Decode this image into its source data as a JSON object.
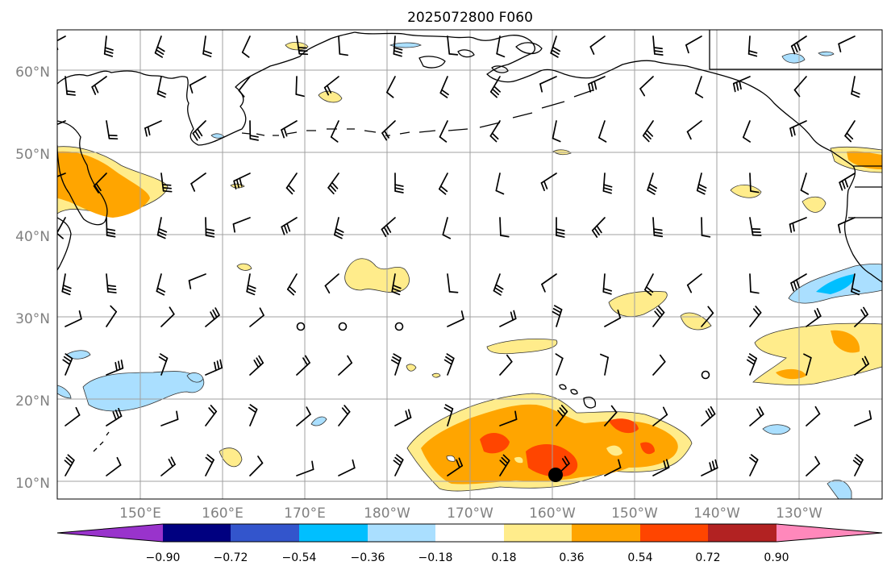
{
  "title": "2025072800 F060",
  "map": {
    "lat_labels": [
      "60°N",
      "50°N",
      "40°N",
      "30°N",
      "20°N",
      "10°N"
    ],
    "lon_labels": [
      "150°E",
      "160°E",
      "170°E",
      "180°W",
      "170°W",
      "160°W",
      "150°W",
      "140°W",
      "130°W"
    ]
  },
  "colorbar": {
    "colors": [
      "#9933cc",
      "#000080",
      "#3355cc",
      "#00bfff",
      "#aadfff",
      "#ffffff",
      "#ffec8b",
      "#ffa500",
      "#ff4500",
      "#b22222",
      "#ff88bb"
    ],
    "tick_labels": [
      "−0.90",
      "−0.72",
      "−0.54",
      "−0.36",
      "−0.18",
      "0.18",
      "0.36",
      "0.54",
      "0.72",
      "0.90"
    ]
  },
  "colors": {
    "pale_yellow": "#ffec8b",
    "orange": "#ffa500",
    "red_orange": "#ff4500",
    "light_blue": "#aadfff",
    "deep_sky": "#00bfff"
  }
}
